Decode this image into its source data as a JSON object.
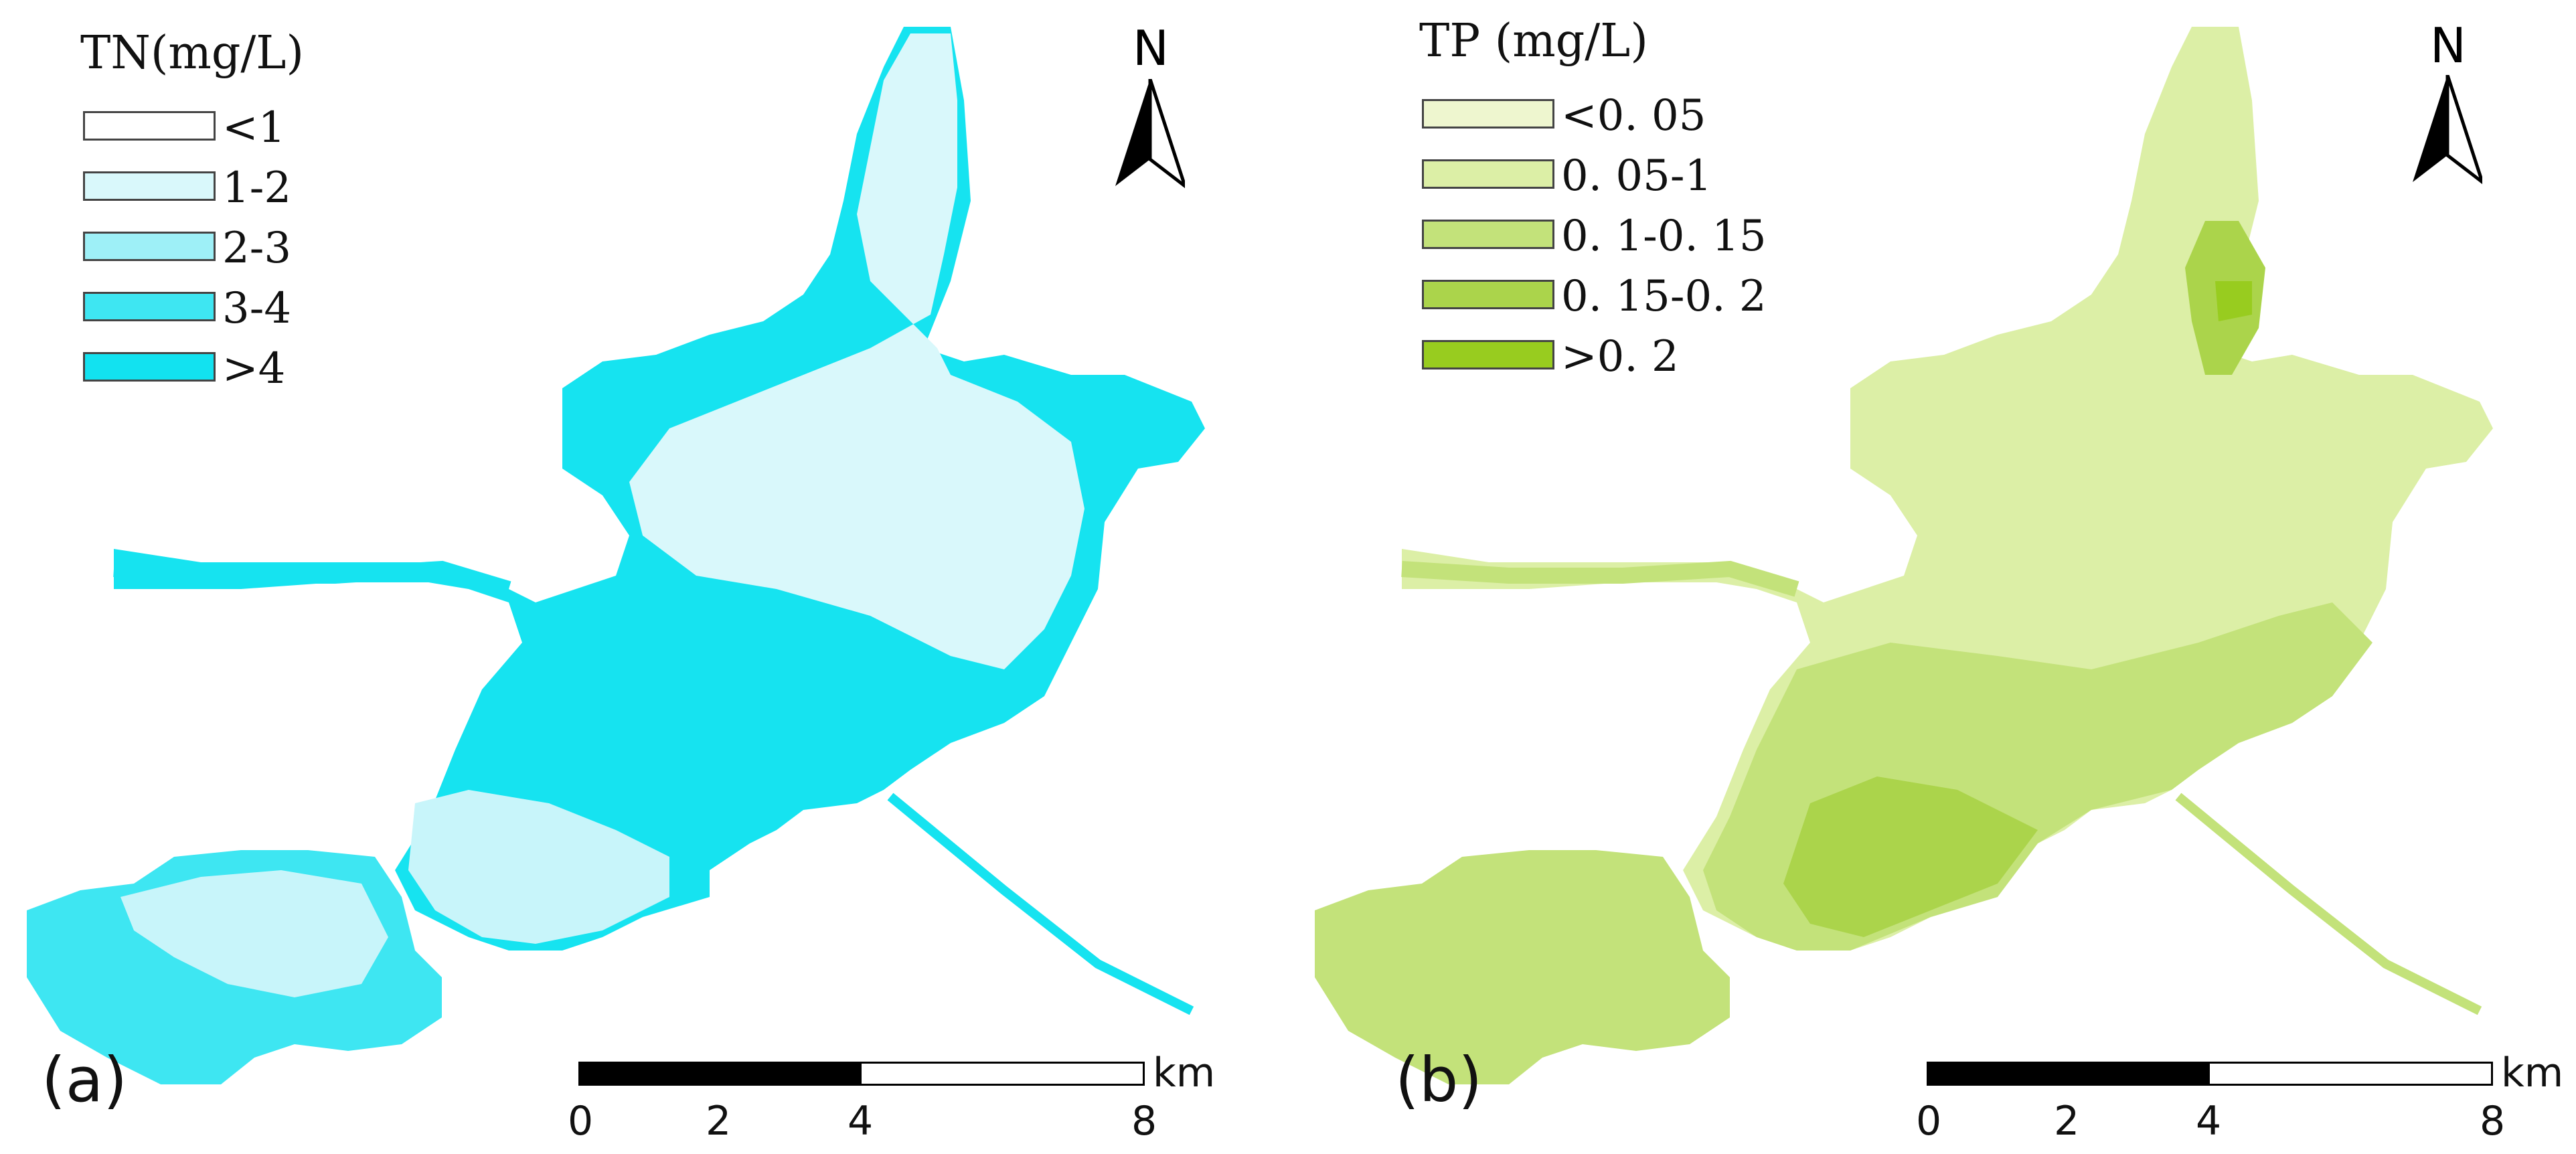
{
  "panels": [
    {
      "label": "(a)",
      "legend_title": "TN(mg/L)",
      "legend": [
        {
          "label": "<1",
          "color": "#ffffff"
        },
        {
          "label": "1-2",
          "color": "#d9f8fb"
        },
        {
          "label": "2-3",
          "color": "#9ef0f7"
        },
        {
          "label": "3-4",
          "color": "#3ee6f2"
        },
        {
          "label": ">4",
          "color": "#12e2f0"
        }
      ],
      "north": "N",
      "scale": {
        "ticks": [
          "0",
          "2",
          "4",
          "8"
        ],
        "unit": "km"
      }
    },
    {
      "label": "(b)",
      "legend_title": "TP (mg/L)",
      "legend": [
        {
          "label": "<0. 05",
          "color": "#eef6cf"
        },
        {
          "label": "0. 05-1",
          "color": "#dcefa6"
        },
        {
          "label": "0. 1-0. 15",
          "color": "#c3e27a"
        },
        {
          "label": "0. 15-0. 2",
          "color": "#abd44b"
        },
        {
          "label": ">0. 2",
          "color": "#98cc1f"
        }
      ],
      "north": "N",
      "scale": {
        "ticks": [
          "0",
          "2",
          "4",
          "8"
        ],
        "unit": "km"
      }
    }
  ]
}
